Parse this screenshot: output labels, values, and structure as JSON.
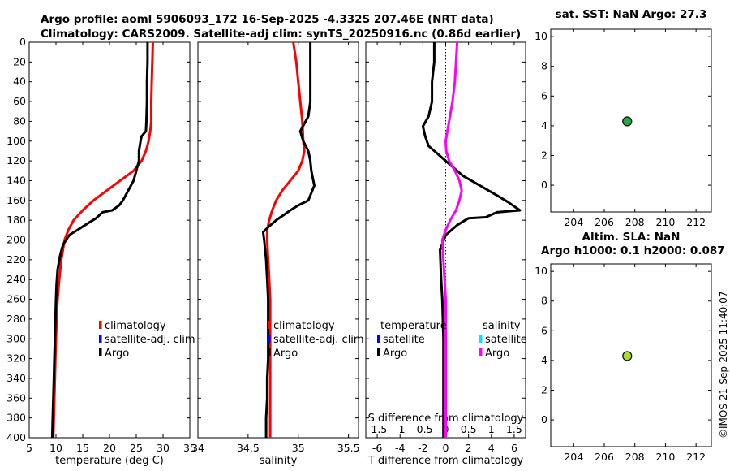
{
  "header": {
    "line1": "Argo profile: aoml 5906093_172 16-Sep-2025 -4.332S 207.46E (NRT data)",
    "line2": "Climatology: CARS2009. Satellite-adj clim: synTS_20250916.nc (0.86d earlier)"
  },
  "colors": {
    "climatology": "#ff0000",
    "satellite_adj": "#0000ff",
    "argo": "#000000",
    "sal_satellite": "#00e5ff",
    "sal_argo": "#ff00ff",
    "sst_marker": "#22aa44",
    "sla_marker": "#aadd22"
  },
  "chart_data": [
    {
      "id": "temperature",
      "type": "line",
      "xlabel": "temperature (deg C)",
      "xlim": [
        5,
        35
      ],
      "xticks": [
        5,
        10,
        15,
        20,
        25,
        30,
        35
      ],
      "ylim": [
        0,
        400
      ],
      "yticks": [
        0,
        20,
        40,
        60,
        80,
        100,
        120,
        140,
        160,
        180,
        200,
        220,
        240,
        260,
        280,
        300,
        320,
        340,
        360,
        380,
        400
      ],
      "y_reversed": true,
      "legend": [
        "climatology",
        "satellite-adj. clim",
        "Argo"
      ],
      "series": [
        {
          "name": "climatology",
          "color_key": "climatology",
          "points": [
            [
              28.1,
              0
            ],
            [
              28.0,
              20
            ],
            [
              27.9,
              40
            ],
            [
              27.8,
              60
            ],
            [
              27.8,
              80
            ],
            [
              27.6,
              90
            ],
            [
              27.3,
              100
            ],
            [
              26.8,
              110
            ],
            [
              26.0,
              120
            ],
            [
              24.5,
              130
            ],
            [
              22.0,
              140
            ],
            [
              19.5,
              150
            ],
            [
              17.0,
              160
            ],
            [
              15.0,
              170
            ],
            [
              13.3,
              180
            ],
            [
              12.3,
              190
            ],
            [
              11.6,
              200
            ],
            [
              11.0,
              220
            ],
            [
              10.6,
              240
            ],
            [
              10.3,
              260
            ],
            [
              10.1,
              280
            ],
            [
              10.0,
              300
            ],
            [
              9.9,
              320
            ],
            [
              9.8,
              340
            ],
            [
              9.7,
              360
            ],
            [
              9.6,
              380
            ],
            [
              9.5,
              400
            ]
          ]
        },
        {
          "name": "Argo",
          "color_key": "argo",
          "points": [
            [
              27.1,
              0
            ],
            [
              27.1,
              20
            ],
            [
              27.0,
              40
            ],
            [
              27.0,
              60
            ],
            [
              26.9,
              80
            ],
            [
              26.8,
              90
            ],
            [
              26.0,
              95
            ],
            [
              25.8,
              100
            ],
            [
              25.5,
              110
            ],
            [
              25.5,
              120
            ],
            [
              25.0,
              130
            ],
            [
              24.5,
              140
            ],
            [
              23.5,
              150
            ],
            [
              22.5,
              160
            ],
            [
              21.8,
              165
            ],
            [
              20.5,
              170
            ],
            [
              18.7,
              172
            ],
            [
              17.5,
              178
            ],
            [
              16.0,
              183
            ],
            [
              14.0,
              190
            ],
            [
              12.5,
              195
            ],
            [
              11.3,
              205
            ],
            [
              10.8,
              215
            ],
            [
              10.3,
              230
            ],
            [
              10.1,
              245
            ],
            [
              10.0,
              260
            ],
            [
              9.9,
              280
            ],
            [
              9.8,
              300
            ],
            [
              9.7,
              320
            ],
            [
              9.6,
              340
            ],
            [
              9.5,
              360
            ],
            [
              9.4,
              380
            ],
            [
              9.3,
              400
            ]
          ]
        }
      ]
    },
    {
      "id": "salinity",
      "type": "line",
      "xlabel": "salinity",
      "xlim": [
        34,
        35.6
      ],
      "xticks": [
        34,
        34.5,
        35,
        35.5
      ],
      "xticklabels": [
        "34",
        "34.5",
        "35",
        "35.5"
      ],
      "ylim": [
        0,
        400
      ],
      "y_reversed": true,
      "legend": [
        "climatology",
        "satellite-adj. clim",
        "Argo"
      ],
      "series": [
        {
          "name": "climatology",
          "color_key": "climatology",
          "points": [
            [
              34.95,
              0
            ],
            [
              34.98,
              20
            ],
            [
              35.0,
              40
            ],
            [
              35.02,
              60
            ],
            [
              35.04,
              80
            ],
            [
              35.05,
              100
            ],
            [
              35.06,
              110
            ],
            [
              35.04,
              120
            ],
            [
              35.0,
              130
            ],
            [
              34.92,
              140
            ],
            [
              34.84,
              150
            ],
            [
              34.78,
              160
            ],
            [
              34.74,
              170
            ],
            [
              34.71,
              180
            ],
            [
              34.69,
              190
            ],
            [
              34.69,
              200
            ],
            [
              34.7,
              220
            ],
            [
              34.71,
              240
            ],
            [
              34.72,
              260
            ],
            [
              34.72,
              280
            ],
            [
              34.72,
              300
            ],
            [
              34.72,
              320
            ],
            [
              34.72,
              340
            ],
            [
              34.72,
              360
            ],
            [
              34.72,
              380
            ],
            [
              34.72,
              400
            ]
          ]
        },
        {
          "name": "Argo",
          "color_key": "argo",
          "points": [
            [
              35.12,
              0
            ],
            [
              35.12,
              20
            ],
            [
              35.12,
              40
            ],
            [
              35.12,
              60
            ],
            [
              35.1,
              75
            ],
            [
              35.02,
              90
            ],
            [
              35.05,
              100
            ],
            [
              35.1,
              110
            ],
            [
              35.12,
              120
            ],
            [
              35.13,
              130
            ],
            [
              35.16,
              145
            ],
            [
              35.1,
              160
            ],
            [
              35.0,
              165
            ],
            [
              34.92,
              170
            ],
            [
              34.85,
              175
            ],
            [
              34.78,
              180
            ],
            [
              34.7,
              187
            ],
            [
              34.65,
              192
            ],
            [
              34.66,
              200
            ],
            [
              34.68,
              220
            ],
            [
              34.69,
              240
            ],
            [
              34.7,
              260
            ],
            [
              34.7,
              280
            ],
            [
              34.7,
              300
            ],
            [
              34.7,
              320
            ],
            [
              34.69,
              340
            ],
            [
              34.69,
              360
            ],
            [
              34.68,
              380
            ],
            [
              34.68,
              400
            ]
          ]
        }
      ]
    },
    {
      "id": "difference",
      "type": "line",
      "xlabel": "T difference from climatology",
      "xlabel_top": "S difference from climatology",
      "xlim": [
        -7,
        7
      ],
      "xticks": [
        -6,
        -4,
        -2,
        0,
        2,
        4,
        6
      ],
      "xticklabels": [
        "-6",
        "-4",
        "-2",
        "0",
        "2",
        "4",
        "6"
      ],
      "xticks_top_pos": [
        -6,
        -4,
        -2,
        0,
        2,
        4,
        6
      ],
      "xticks_top_labels": [
        "-1.5",
        "-1",
        "-0.5",
        "0",
        "0.5",
        "1",
        "1.5"
      ],
      "ylim": [
        0,
        400
      ],
      "y_reversed": true,
      "legend_left_title": "temperature",
      "legend_right_title": "salinity",
      "legend_left": [
        "satellite",
        "Argo"
      ],
      "legend_right": [
        "satellite",
        "Argo"
      ],
      "series": [
        {
          "name": "temperature Argo",
          "color_key": "argo",
          "points": [
            [
              -1.0,
              0
            ],
            [
              -1.0,
              20
            ],
            [
              -1.2,
              40
            ],
            [
              -1.2,
              60
            ],
            [
              -1.5,
              75
            ],
            [
              -2.0,
              85
            ],
            [
              -1.8,
              95
            ],
            [
              -1.5,
              105
            ],
            [
              -0.5,
              115
            ],
            [
              0.5,
              125
            ],
            [
              1.5,
              135
            ],
            [
              3.0,
              145
            ],
            [
              4.5,
              155
            ],
            [
              5.5,
              162
            ],
            [
              6.5,
              170
            ],
            [
              4.5,
              172
            ],
            [
              3.5,
              177
            ],
            [
              2.0,
              178
            ],
            [
              1.0,
              185
            ],
            [
              0,
              195
            ],
            [
              -0.5,
              210
            ],
            [
              -0.4,
              240
            ],
            [
              -0.3,
              260
            ],
            [
              -0.2,
              300
            ],
            [
              -0.2,
              340
            ],
            [
              -0.2,
              360
            ],
            [
              -0.2,
              400
            ]
          ]
        },
        {
          "name": "salinity Argo",
          "color_key": "sal_argo",
          "points": [
            [
              1.0,
              0
            ],
            [
              0.9,
              20
            ],
            [
              0.8,
              40
            ],
            [
              0.6,
              60
            ],
            [
              0.3,
              80
            ],
            [
              0.0,
              100
            ],
            [
              0.05,
              110
            ],
            [
              0.3,
              120
            ],
            [
              0.8,
              130
            ],
            [
              1.2,
              140
            ],
            [
              1.4,
              150
            ],
            [
              1.2,
              160
            ],
            [
              0.9,
              170
            ],
            [
              0.4,
              180
            ],
            [
              0.0,
              190
            ],
            [
              -0.3,
              200
            ],
            [
              -0.2,
              220
            ],
            [
              -0.1,
              240
            ],
            [
              0.0,
              260
            ],
            [
              0.0,
              280
            ],
            [
              0.0,
              300
            ],
            [
              0.0,
              320
            ],
            [
              0.0,
              340
            ],
            [
              0.0,
              360
            ],
            [
              0.0,
              380
            ],
            [
              0.0,
              400
            ]
          ]
        }
      ]
    },
    {
      "id": "sst",
      "type": "scatter",
      "title": "sat. SST: NaN Argo: 27.3",
      "xlim": [
        202.5,
        213
      ],
      "xticks": [
        204,
        206,
        208,
        210,
        212
      ],
      "ylim": [
        -1.8,
        10.5
      ],
      "yticks": [
        0,
        2,
        4,
        6,
        8,
        10
      ],
      "points": [
        {
          "x": 207.5,
          "y": 4.3,
          "color_key": "sst_marker"
        }
      ]
    },
    {
      "id": "sla",
      "type": "scatter",
      "title_line1": "Altim. SLA: NaN",
      "title_line2": "Argo h1000: 0.1 h2000: 0.087",
      "xlim": [
        202.5,
        213
      ],
      "xticks": [
        204,
        206,
        208,
        210,
        212
      ],
      "ylim": [
        -1.8,
        10.5
      ],
      "yticks": [
        0,
        2,
        4,
        6,
        8,
        10
      ],
      "points": [
        {
          "x": 207.5,
          "y": 4.3,
          "color_key": "sla_marker"
        }
      ]
    }
  ],
  "footer": {
    "stamp": "©IMOS 21-Sep-2025 11:40:07"
  }
}
